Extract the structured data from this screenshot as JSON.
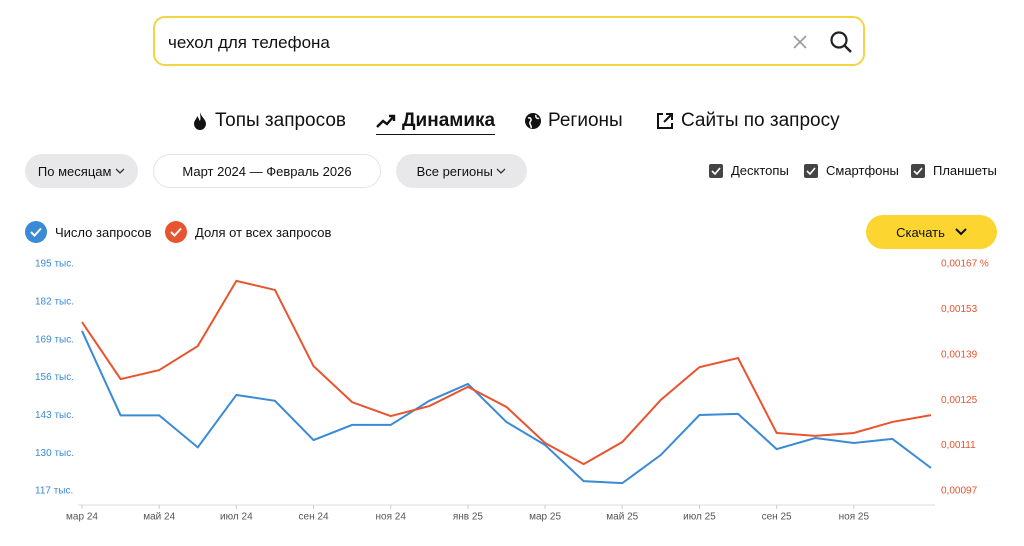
{
  "search": {
    "query": "чехол для телефона"
  },
  "tabs": [
    "Топы запросов",
    "Динамика",
    "Регионы",
    "Сайты по запросу"
  ],
  "filters": {
    "period_type": "По месяцам",
    "period": "Март 2024 — Февраль 2026",
    "region": "Все регионы"
  },
  "devices": [
    "Десктопы",
    "Смартфоны",
    "Планшеты"
  ],
  "download": "Скачать",
  "chart_data": {
    "type": "line",
    "categories": [
      "мар 24",
      null,
      "май 24",
      null,
      "июл 24",
      null,
      "сен 24",
      null,
      "ноя 24",
      null,
      "янв 25",
      null,
      "мар 25",
      null,
      "май 25",
      null,
      "июл 25",
      null,
      "сен 25",
      null,
      "ноя 25",
      null,
      null
    ],
    "series": [
      {
        "name": "Число запросов",
        "color": "#3a8ad6",
        "axis": "y",
        "values": [
          172,
          143,
          143,
          132,
          150,
          148,
          134.5,
          139.7,
          139.7,
          148,
          153.8,
          140.7,
          132.8,
          120.4,
          119.7,
          129.4,
          143.1,
          143.5,
          131.4,
          135.2,
          133.5,
          134.9,
          124.9
        ]
      },
      {
        "name": "Доля от всех запросов",
        "color": "#e8542f",
        "axis": "y2",
        "values": [
          0.001491,
          0.001315,
          0.001343,
          0.001417,
          0.001618,
          0.00159,
          0.001355,
          0.001244,
          0.001201,
          0.001232,
          0.001291,
          0.001229,
          0.001118,
          0.001053,
          0.001121,
          0.001251,
          0.001352,
          0.00138,
          0.001149,
          0.00114,
          0.001149,
          0.001183,
          0.001204
        ]
      }
    ],
    "ylim": [
      117,
      195
    ],
    "yticks": [
      {
        "value": 117,
        "label": "117 тыс."
      },
      {
        "value": 130,
        "label": "130 тыс."
      },
      {
        "value": 143,
        "label": "143 тыс."
      },
      {
        "value": 156,
        "label": "156 тыс."
      },
      {
        "value": 169,
        "label": "169 тыс."
      },
      {
        "value": 182,
        "label": "182 тыс."
      },
      {
        "value": 195,
        "label": "195 тыс."
      }
    ],
    "y2lim": [
      0.00097,
      0.00167
    ],
    "y2ticks": [
      {
        "value": 0.00097,
        "label": "0,00097"
      },
      {
        "value": 0.00111,
        "label": "0,00111"
      },
      {
        "value": 0.00125,
        "label": "0,00125"
      },
      {
        "value": 0.00139,
        "label": "0,00139"
      },
      {
        "value": 0.00153,
        "label": "0,00153"
      },
      {
        "value": 0.00167,
        "label": "0,00167 %"
      }
    ]
  }
}
